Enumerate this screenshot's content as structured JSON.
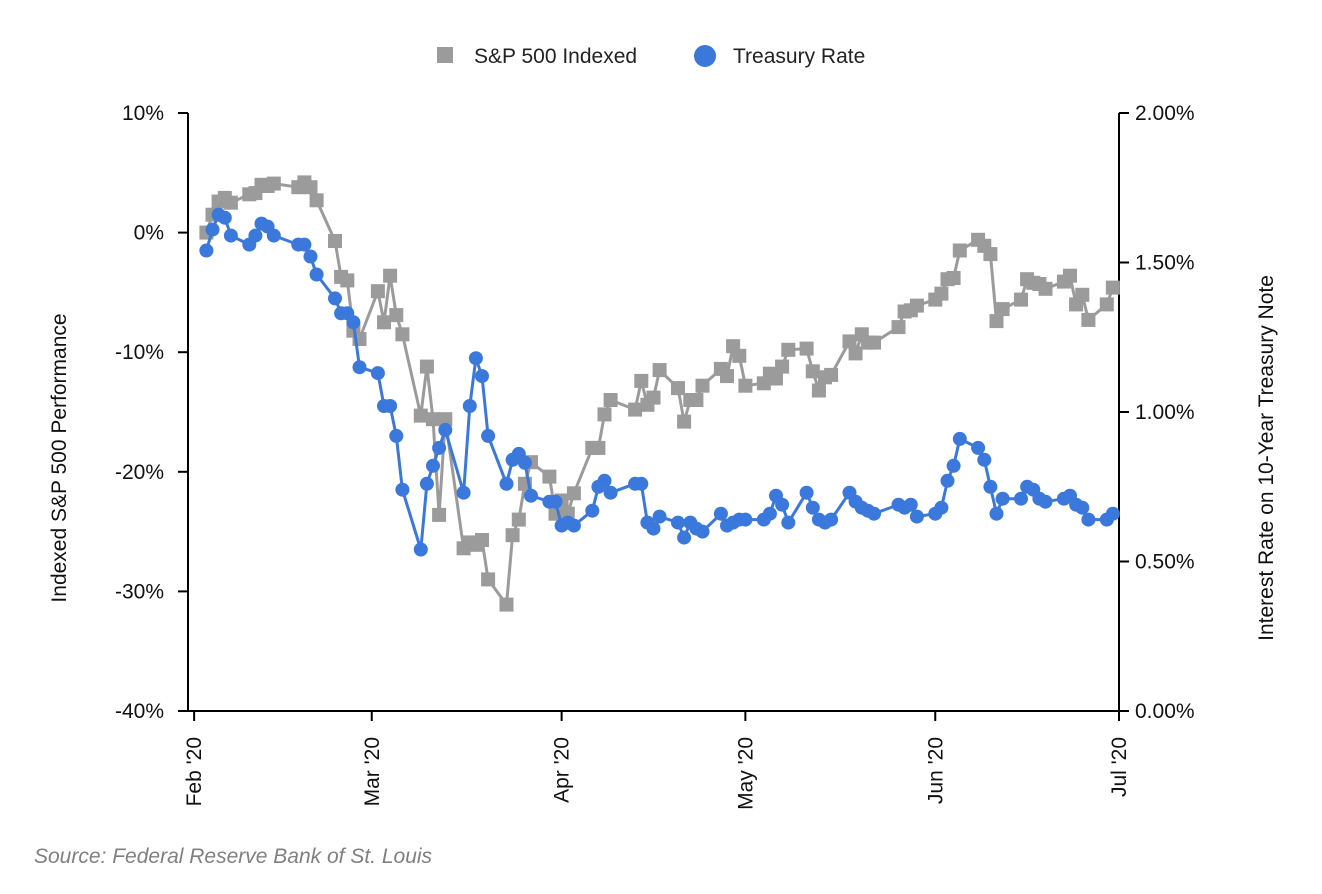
{
  "chart_data": {
    "type": "line",
    "title": "",
    "legend_position": "top-center",
    "legend": [
      {
        "name": "S&P 500 Indexed",
        "marker": "square",
        "color": "#9b9b9b"
      },
      {
        "name": "Treasury Rate",
        "marker": "circle",
        "color": "#3b78dc"
      }
    ],
    "x_axis": {
      "type": "time",
      "range": [
        "2020-01-31",
        "2020-07-01"
      ],
      "ticks": [
        {
          "date": "2020-02-01",
          "label": "Feb '20"
        },
        {
          "date": "2020-03-01",
          "label": "Mar '20"
        },
        {
          "date": "2020-04-01",
          "label": "Apr '20"
        },
        {
          "date": "2020-05-01",
          "label": "May '20"
        },
        {
          "date": "2020-06-01",
          "label": "Jun '20"
        },
        {
          "date": "2020-07-01",
          "label": "Jul '20"
        }
      ]
    },
    "y_left": {
      "label": "Indexed S&P 500 Performance",
      "range": [
        -40,
        10
      ],
      "ticks": [
        {
          "value": 10,
          "label": "10%"
        },
        {
          "value": 0,
          "label": "0%"
        },
        {
          "value": -10,
          "label": "-10%"
        },
        {
          "value": -20,
          "label": "-20%"
        },
        {
          "value": -30,
          "label": "-30%"
        },
        {
          "value": -40,
          "label": "-40%"
        }
      ]
    },
    "y_right": {
      "label": "Interest Rate on 10-Year Treasury Note",
      "range": [
        0,
        2.0
      ],
      "ticks": [
        {
          "value": 2.0,
          "label": "2.00%"
        },
        {
          "value": 1.5,
          "label": "1.50%"
        },
        {
          "value": 1.0,
          "label": "1.00%"
        },
        {
          "value": 0.5,
          "label": "0.50%"
        },
        {
          "value": 0.0,
          "label": "0.00%"
        }
      ]
    },
    "series": [
      {
        "name": "S&P 500 Indexed",
        "axis": "left",
        "x": [
          "2020-02-03",
          "2020-02-04",
          "2020-02-05",
          "2020-02-06",
          "2020-02-07",
          "2020-02-10",
          "2020-02-11",
          "2020-02-12",
          "2020-02-13",
          "2020-02-14",
          "2020-02-18",
          "2020-02-19",
          "2020-02-20",
          "2020-02-21",
          "2020-02-24",
          "2020-02-25",
          "2020-02-26",
          "2020-02-27",
          "2020-02-28",
          "2020-03-02",
          "2020-03-03",
          "2020-03-04",
          "2020-03-05",
          "2020-03-06",
          "2020-03-09",
          "2020-03-10",
          "2020-03-11",
          "2020-03-12",
          "2020-03-13",
          "2020-03-16",
          "2020-03-17",
          "2020-03-18",
          "2020-03-19",
          "2020-03-20",
          "2020-03-23",
          "2020-03-24",
          "2020-03-25",
          "2020-03-26",
          "2020-03-27",
          "2020-03-30",
          "2020-03-31",
          "2020-04-01",
          "2020-04-02",
          "2020-04-03",
          "2020-04-06",
          "2020-04-07",
          "2020-04-08",
          "2020-04-09",
          "2020-04-13",
          "2020-04-14",
          "2020-04-15",
          "2020-04-16",
          "2020-04-17",
          "2020-04-20",
          "2020-04-21",
          "2020-04-22",
          "2020-04-23",
          "2020-04-24",
          "2020-04-27",
          "2020-04-28",
          "2020-04-29",
          "2020-04-30",
          "2020-05-01",
          "2020-05-04",
          "2020-05-05",
          "2020-05-06",
          "2020-05-07",
          "2020-05-08",
          "2020-05-11",
          "2020-05-12",
          "2020-05-13",
          "2020-05-14",
          "2020-05-15",
          "2020-05-18",
          "2020-05-19",
          "2020-05-20",
          "2020-05-21",
          "2020-05-22",
          "2020-05-26",
          "2020-05-27",
          "2020-05-28",
          "2020-05-29",
          "2020-06-01",
          "2020-06-02",
          "2020-06-03",
          "2020-06-04",
          "2020-06-05",
          "2020-06-08",
          "2020-06-09",
          "2020-06-10",
          "2020-06-11",
          "2020-06-12",
          "2020-06-15",
          "2020-06-16",
          "2020-06-17",
          "2020-06-18",
          "2020-06-19",
          "2020-06-22",
          "2020-06-23",
          "2020-06-24",
          "2020-06-25",
          "2020-06-26",
          "2020-06-29",
          "2020-06-30"
        ],
        "values": [
          0.0,
          1.5,
          2.6,
          2.9,
          2.5,
          3.2,
          3.3,
          4.0,
          3.9,
          4.1,
          3.8,
          4.2,
          3.8,
          2.7,
          -0.7,
          -3.7,
          -4.0,
          -8.2,
          -8.9,
          -4.9,
          -7.5,
          -3.6,
          -6.9,
          -8.5,
          -15.3,
          -11.2,
          -15.6,
          -23.6,
          -15.6,
          -26.4,
          -25.9,
          -26.1,
          -25.7,
          -29.0,
          -31.1,
          -25.3,
          -24.0,
          -21.0,
          -19.2,
          -20.4,
          -23.5,
          -22.4,
          -23.5,
          -21.8,
          -18.0,
          -18.0,
          -15.2,
          -14.0,
          -14.8,
          -12.4,
          -14.4,
          -13.8,
          -11.5,
          -13.0,
          -15.8,
          -14.0,
          -14.0,
          -12.8,
          -11.4,
          -12.0,
          -9.5,
          -10.3,
          -12.8,
          -12.6,
          -11.8,
          -12.2,
          -11.2,
          -9.8,
          -9.7,
          -11.6,
          -13.2,
          -12.1,
          -11.9,
          -9.1,
          -10.1,
          -8.5,
          -9.2,
          -9.2,
          -7.9,
          -6.6,
          -6.5,
          -6.1,
          -5.6,
          -5.1,
          -3.9,
          -3.8,
          -1.5,
          -0.6,
          -1.1,
          -1.8,
          -7.4,
          -6.4,
          -5.6,
          -3.9,
          -4.2,
          -4.3,
          -4.7,
          -4.1,
          -3.6,
          -6.0,
          -5.2,
          -7.3,
          -6.0,
          -4.6
        ]
      },
      {
        "name": "Treasury Rate",
        "axis": "right",
        "x": [
          "2020-02-03",
          "2020-02-04",
          "2020-02-05",
          "2020-02-06",
          "2020-02-07",
          "2020-02-10",
          "2020-02-11",
          "2020-02-12",
          "2020-02-13",
          "2020-02-14",
          "2020-02-18",
          "2020-02-19",
          "2020-02-20",
          "2020-02-21",
          "2020-02-24",
          "2020-02-25",
          "2020-02-26",
          "2020-02-27",
          "2020-02-28",
          "2020-03-02",
          "2020-03-03",
          "2020-03-04",
          "2020-03-05",
          "2020-03-06",
          "2020-03-09",
          "2020-03-10",
          "2020-03-11",
          "2020-03-12",
          "2020-03-13",
          "2020-03-16",
          "2020-03-17",
          "2020-03-18",
          "2020-03-19",
          "2020-03-20",
          "2020-03-23",
          "2020-03-24",
          "2020-03-25",
          "2020-03-26",
          "2020-03-27",
          "2020-03-30",
          "2020-03-31",
          "2020-04-01",
          "2020-04-02",
          "2020-04-03",
          "2020-04-06",
          "2020-04-07",
          "2020-04-08",
          "2020-04-09",
          "2020-04-13",
          "2020-04-14",
          "2020-04-15",
          "2020-04-16",
          "2020-04-17",
          "2020-04-20",
          "2020-04-21",
          "2020-04-22",
          "2020-04-23",
          "2020-04-24",
          "2020-04-27",
          "2020-04-28",
          "2020-04-29",
          "2020-04-30",
          "2020-05-01",
          "2020-05-04",
          "2020-05-05",
          "2020-05-06",
          "2020-05-07",
          "2020-05-08",
          "2020-05-11",
          "2020-05-12",
          "2020-05-13",
          "2020-05-14",
          "2020-05-15",
          "2020-05-18",
          "2020-05-19",
          "2020-05-20",
          "2020-05-21",
          "2020-05-22",
          "2020-05-26",
          "2020-05-27",
          "2020-05-28",
          "2020-05-29",
          "2020-06-01",
          "2020-06-02",
          "2020-06-03",
          "2020-06-04",
          "2020-06-05",
          "2020-06-08",
          "2020-06-09",
          "2020-06-10",
          "2020-06-11",
          "2020-06-12",
          "2020-06-15",
          "2020-06-16",
          "2020-06-17",
          "2020-06-18",
          "2020-06-19",
          "2020-06-22",
          "2020-06-23",
          "2020-06-24",
          "2020-06-25",
          "2020-06-26",
          "2020-06-29",
          "2020-06-30"
        ],
        "values": [
          1.54,
          1.61,
          1.66,
          1.65,
          1.59,
          1.56,
          1.59,
          1.63,
          1.62,
          1.59,
          1.56,
          1.56,
          1.52,
          1.46,
          1.38,
          1.33,
          1.33,
          1.3,
          1.15,
          1.13,
          1.02,
          1.02,
          0.92,
          0.74,
          0.54,
          0.76,
          0.82,
          0.88,
          0.94,
          0.73,
          1.02,
          1.18,
          1.12,
          0.92,
          0.76,
          0.84,
          0.86,
          0.83,
          0.72,
          0.7,
          0.7,
          0.62,
          0.63,
          0.62,
          0.67,
          0.75,
          0.77,
          0.73,
          0.76,
          0.76,
          0.63,
          0.61,
          0.65,
          0.63,
          0.58,
          0.63,
          0.61,
          0.6,
          0.66,
          0.62,
          0.63,
          0.64,
          0.64,
          0.64,
          0.66,
          0.72,
          0.69,
          0.63,
          0.73,
          0.68,
          0.64,
          0.63,
          0.64,
          0.73,
          0.7,
          0.68,
          0.67,
          0.66,
          0.69,
          0.68,
          0.69,
          0.65,
          0.66,
          0.68,
          0.77,
          0.82,
          0.91,
          0.88,
          0.84,
          0.75,
          0.66,
          0.71,
          0.71,
          0.75,
          0.74,
          0.71,
          0.7,
          0.71,
          0.72,
          0.69,
          0.68,
          0.64,
          0.64,
          0.66
        ]
      }
    ]
  },
  "source": "Source: Federal Reserve Bank of St. Louis",
  "colors": {
    "sp500": "#9b9b9b",
    "treasury": "#3b78dc",
    "axis": "#000000"
  }
}
